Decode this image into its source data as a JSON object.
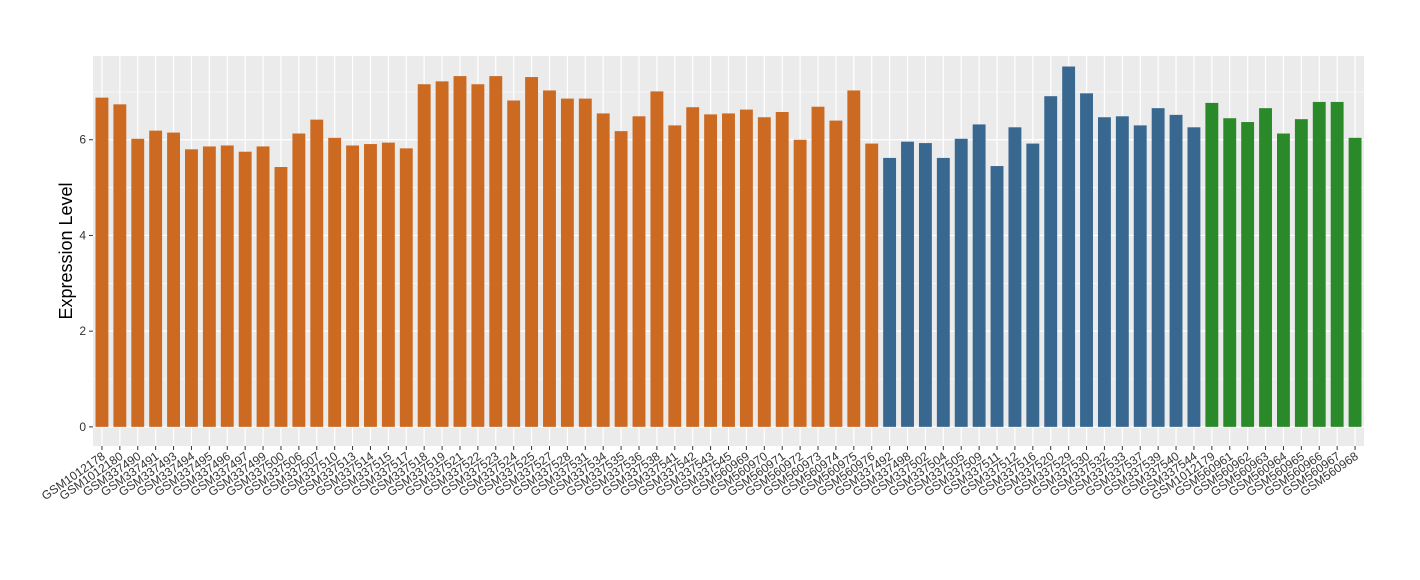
{
  "chart_data": {
    "type": "bar",
    "title": "",
    "xlabel": "",
    "ylabel": "Expression Level",
    "ylim": [
      -0.4,
      7.75
    ],
    "yticks": [
      0,
      2,
      4,
      6
    ],
    "grid": true,
    "legend": "none",
    "panel_background": "#ebebeb",
    "grid_color": "#ffffff",
    "categories": [
      "GSM1012178",
      "GSM1012180",
      "GSM337490",
      "GSM337491",
      "GSM337493",
      "GSM337494",
      "GSM337495",
      "GSM337496",
      "GSM337497",
      "GSM337499",
      "GSM337500",
      "GSM337506",
      "GSM337507",
      "GSM337510",
      "GSM337513",
      "GSM337514",
      "GSM337515",
      "GSM337517",
      "GSM337518",
      "GSM337519",
      "GSM337521",
      "GSM337522",
      "GSM337523",
      "GSM337524",
      "GSM337525",
      "GSM337527",
      "GSM337528",
      "GSM337531",
      "GSM337534",
      "GSM337535",
      "GSM337536",
      "GSM337538",
      "GSM337541",
      "GSM337542",
      "GSM337543",
      "GSM337545",
      "GSM560969",
      "GSM560970",
      "GSM560971",
      "GSM560972",
      "GSM560973",
      "GSM560974",
      "GSM560975",
      "GSM560976",
      "GSM337492",
      "GSM337498",
      "GSM337502",
      "GSM337504",
      "GSM337505",
      "GSM337509",
      "GSM337511",
      "GSM337512",
      "GSM337516",
      "GSM337520",
      "GSM337529",
      "GSM337530",
      "GSM337532",
      "GSM337533",
      "GSM337537",
      "GSM337539",
      "GSM337540",
      "GSM337544",
      "GSM1012179",
      "GSM560961",
      "GSM560962",
      "GSM560963",
      "GSM560964",
      "GSM560965",
      "GSM560966",
      "GSM560967",
      "GSM560968"
    ],
    "values": [
      6.88,
      6.74,
      6.02,
      6.19,
      6.15,
      5.8,
      5.86,
      5.88,
      5.75,
      5.86,
      5.43,
      6.13,
      6.42,
      6.04,
      5.88,
      5.91,
      5.94,
      5.82,
      7.16,
      7.22,
      7.33,
      7.16,
      7.33,
      6.82,
      7.31,
      7.03,
      6.86,
      6.86,
      6.55,
      6.18,
      6.49,
      7.01,
      6.3,
      6.68,
      6.53,
      6.55,
      6.63,
      6.47,
      6.58,
      6.0,
      6.69,
      6.4,
      7.03,
      5.92,
      5.62,
      5.96,
      5.93,
      5.62,
      6.02,
      6.32,
      5.45,
      6.26,
      5.92,
      6.91,
      7.53,
      6.97,
      6.47,
      6.49,
      6.3,
      6.66,
      6.52,
      6.26,
      6.77,
      6.45,
      6.37,
      6.66,
      6.13,
      6.43,
      6.79,
      6.79,
      6.04
    ],
    "groups": [
      {
        "color": "#cc6a22",
        "count": 44
      },
      {
        "color": "#386790",
        "count": 18
      },
      {
        "color": "#2a8a2a",
        "count": 9
      }
    ]
  }
}
